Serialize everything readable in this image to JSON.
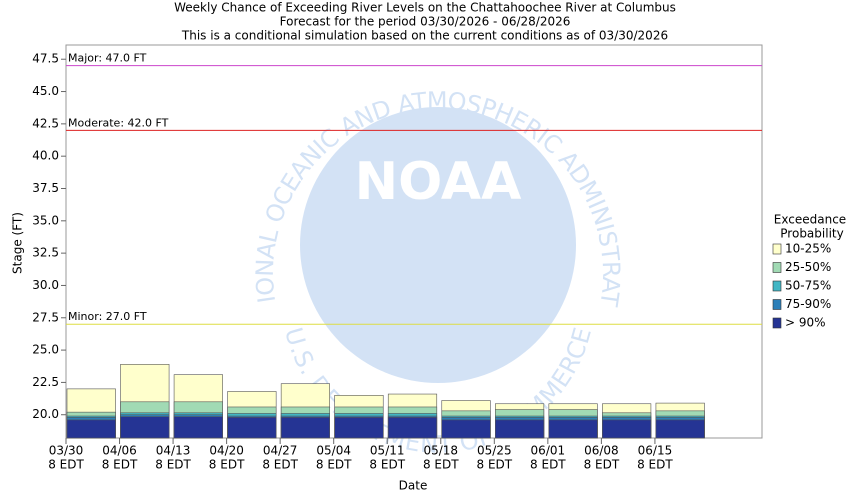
{
  "chart_data": {
    "type": "overlay_bar",
    "title": [
      "Weekly Chance of Exceeding River Levels on the Chattahoochee River at Columbus",
      "Forecast for the period 03/30/2026 - 06/28/2026",
      "This is a conditional simulation based on the current conditions as of 03/30/2026"
    ],
    "xlabel": "Date",
    "ylabel": "Stage (FT)",
    "categories": [
      "03/30",
      "04/06",
      "04/13",
      "04/20",
      "04/27",
      "05/04",
      "05/11",
      "05/18",
      "05/25",
      "06/01",
      "06/08",
      "06/15"
    ],
    "x_tick_sublabel": "8 EDT",
    "legend_title": [
      "Exceedance",
      "Probability"
    ],
    "series": [
      {
        "name": "10-25%",
        "color": "#ffffcc",
        "values": [
          22.0,
          23.9,
          23.1,
          21.8,
          22.4,
          21.5,
          21.6,
          21.1,
          20.85,
          20.85,
          20.85,
          20.9
        ]
      },
      {
        "name": "25-50%",
        "color": "#a1dab4",
        "values": [
          20.2,
          21.0,
          21.0,
          20.6,
          20.6,
          20.6,
          20.6,
          20.3,
          20.4,
          20.4,
          20.15,
          20.3
        ]
      },
      {
        "name": "50-75%",
        "color": "#41b6c4",
        "values": [
          19.9,
          20.15,
          20.15,
          20.1,
          20.1,
          20.1,
          20.1,
          19.9,
          19.9,
          19.9,
          19.9,
          19.9
        ]
      },
      {
        "name": "75-90%",
        "color": "#2c7fb8",
        "values": [
          19.8,
          20.0,
          20.0,
          19.9,
          19.9,
          19.9,
          19.9,
          19.8,
          19.8,
          19.8,
          19.8,
          19.8
        ]
      },
      {
        "name": "> 90%",
        "color": "#253494",
        "values": [
          19.6,
          19.85,
          19.85,
          19.8,
          19.8,
          19.8,
          19.8,
          19.6,
          19.6,
          19.6,
          19.6,
          19.6
        ]
      }
    ],
    "thresholds": [
      {
        "label": "Major: 47.0 FT",
        "value": 47.0,
        "color": "#cc44cc"
      },
      {
        "label": "Moderate: 42.0 FT",
        "value": 42.0,
        "color": "#dd2222"
      },
      {
        "label": "Minor: 27.0 FT",
        "value": 27.0,
        "color": "#dddd44"
      }
    ],
    "ylim": [
      18.2,
      48.6
    ],
    "yticks": [
      {
        "value": 20,
        "label": "20.0"
      },
      22.5,
      {
        "value": 25,
        "label": "25.0"
      },
      27.5,
      {
        "value": 30,
        "label": "30.0"
      },
      32.5,
      {
        "value": 35,
        "label": "35.0"
      },
      37.5,
      {
        "value": 40,
        "label": "40.0"
      },
      42.5,
      {
        "value": 45,
        "label": "45.0"
      },
      47.5
    ],
    "weeks": 13,
    "watermark": {
      "logo": "NOAA",
      "top": "NATIONAL OCEANIC AND ATMOSPHERIC ADMINISTRATION",
      "bottom": "U.S. DEPARTMENT OF COMMERCE"
    }
  }
}
